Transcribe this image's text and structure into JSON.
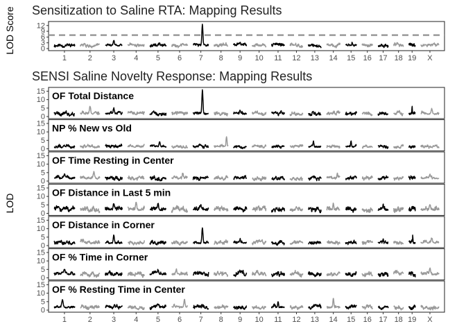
{
  "chart_data": [
    {
      "type": "line",
      "title": "Sensitization to Saline RTA: Mapping Results",
      "ylabel": "LOD Score",
      "xlabel": "",
      "ylim": [
        0,
        13
      ],
      "yticks": [
        0,
        3,
        6,
        9,
        12
      ],
      "threshold": 7,
      "chromosomes": [
        "1",
        "2",
        "3",
        "4",
        "5",
        "6",
        "7",
        "8",
        "9",
        "10",
        "11",
        "12",
        "13",
        "14",
        "15",
        "16",
        "17",
        "18",
        "19",
        "X"
      ],
      "grid": false,
      "series": [
        {
          "baseline": 1.5,
          "noise": 1.2,
          "peaks": [
            {
              "chr": "3",
              "pos": 0.5,
              "value": 4.5
            },
            {
              "chr": "7",
              "pos": 0.6,
              "value": 12.5
            },
            {
              "chr": "9",
              "pos": 0.5,
              "value": 3.5
            },
            {
              "chr": "15",
              "pos": 0.6,
              "value": 3.5
            }
          ]
        }
      ]
    },
    {
      "type": "line",
      "title": "SENSI Saline Novelty Response: Mapping Results",
      "ylabel": "LOD",
      "xlabel": "",
      "ylim": [
        0,
        16
      ],
      "yticks": [
        0,
        5,
        10,
        15
      ],
      "chromosomes": [
        "1",
        "2",
        "3",
        "4",
        "5",
        "6",
        "7",
        "8",
        "9",
        "10",
        "11",
        "12",
        "13",
        "14",
        "15",
        "16",
        "17",
        "18",
        "19",
        "X"
      ],
      "grid": false,
      "series": [
        {
          "name": "OF Total Distance",
          "baseline": 1.5,
          "noise": 1.5,
          "peaks": [
            {
              "chr": "2",
              "pos": 0.5,
              "value": 6
            },
            {
              "chr": "3",
              "pos": 0.5,
              "value": 5
            },
            {
              "chr": "7",
              "pos": 0.6,
              "value": 15.5
            },
            {
              "chr": "9",
              "pos": 0.5,
              "value": 4
            },
            {
              "chr": "19",
              "pos": 0.5,
              "value": 6
            },
            {
              "chr": "X",
              "pos": 0.6,
              "value": 4.5
            }
          ]
        },
        {
          "name": "NP % New vs Old",
          "baseline": 1.2,
          "noise": 1.2,
          "peaks": [
            {
              "chr": "5",
              "pos": 0.6,
              "value": 4
            },
            {
              "chr": "8",
              "pos": 0.9,
              "value": 7
            },
            {
              "chr": "13",
              "pos": 0.4,
              "value": 4.5
            },
            {
              "chr": "15",
              "pos": 0.5,
              "value": 5
            }
          ]
        },
        {
          "name": "OF Time Resting in Center",
          "baseline": 1.5,
          "noise": 1.5,
          "peaks": [
            {
              "chr": "1",
              "pos": 0.5,
              "value": 4
            },
            {
              "chr": "2",
              "pos": 0.7,
              "value": 5.5
            },
            {
              "chr": "6",
              "pos": 0.7,
              "value": 5
            },
            {
              "chr": "14",
              "pos": 0.8,
              "value": 4.5
            },
            {
              "chr": "X",
              "pos": 0.5,
              "value": 4
            }
          ]
        },
        {
          "name": "OF Distance in Last 5 min",
          "baseline": 2,
          "noise": 2,
          "peaks": [
            {
              "chr": "3",
              "pos": 0.5,
              "value": 6
            },
            {
              "chr": "4",
              "pos": 0.5,
              "value": 7
            },
            {
              "chr": "5",
              "pos": 0.5,
              "value": 6
            },
            {
              "chr": "7",
              "pos": 0.5,
              "value": 5
            },
            {
              "chr": "14",
              "pos": 0.5,
              "value": 6
            },
            {
              "chr": "17",
              "pos": 0.5,
              "value": 5.5
            },
            {
              "chr": "X",
              "pos": 0.5,
              "value": 5
            }
          ]
        },
        {
          "name": "OF Distance in Corner",
          "baseline": 1.5,
          "noise": 1.5,
          "peaks": [
            {
              "chr": "3",
              "pos": 0.5,
              "value": 6
            },
            {
              "chr": "7",
              "pos": 0.6,
              "value": 10.5
            },
            {
              "chr": "9",
              "pos": 0.5,
              "value": 4
            },
            {
              "chr": "17",
              "pos": 0.5,
              "value": 4
            },
            {
              "chr": "19",
              "pos": 0.6,
              "value": 6
            },
            {
              "chr": "X",
              "pos": 0.6,
              "value": 4.5
            }
          ]
        },
        {
          "name": "OF % Time in Corner",
          "baseline": 2,
          "noise": 1.8,
          "peaks": [
            {
              "chr": "1",
              "pos": 0.5,
              "value": 5
            },
            {
              "chr": "5",
              "pos": 0.5,
              "value": 5
            },
            {
              "chr": "6",
              "pos": 0.3,
              "value": 5
            },
            {
              "chr": "X",
              "pos": 0.5,
              "value": 6
            }
          ]
        },
        {
          "name": "OF % Resting Time in Center",
          "baseline": 1.5,
          "noise": 1.5,
          "peaks": [
            {
              "chr": "1",
              "pos": 0.4,
              "value": 6
            },
            {
              "chr": "6",
              "pos": 0.8,
              "value": 6.5
            },
            {
              "chr": "11",
              "pos": 0.5,
              "value": 5
            },
            {
              "chr": "14",
              "pos": 0.5,
              "value": 7
            }
          ]
        }
      ]
    }
  ],
  "colors": {
    "odd_chromosome": "#000000",
    "even_chromosome": "#999999",
    "threshold_line": "#999999",
    "panel_border": "#333333",
    "tick_label": "#4d4d4d",
    "title": "#222222"
  }
}
